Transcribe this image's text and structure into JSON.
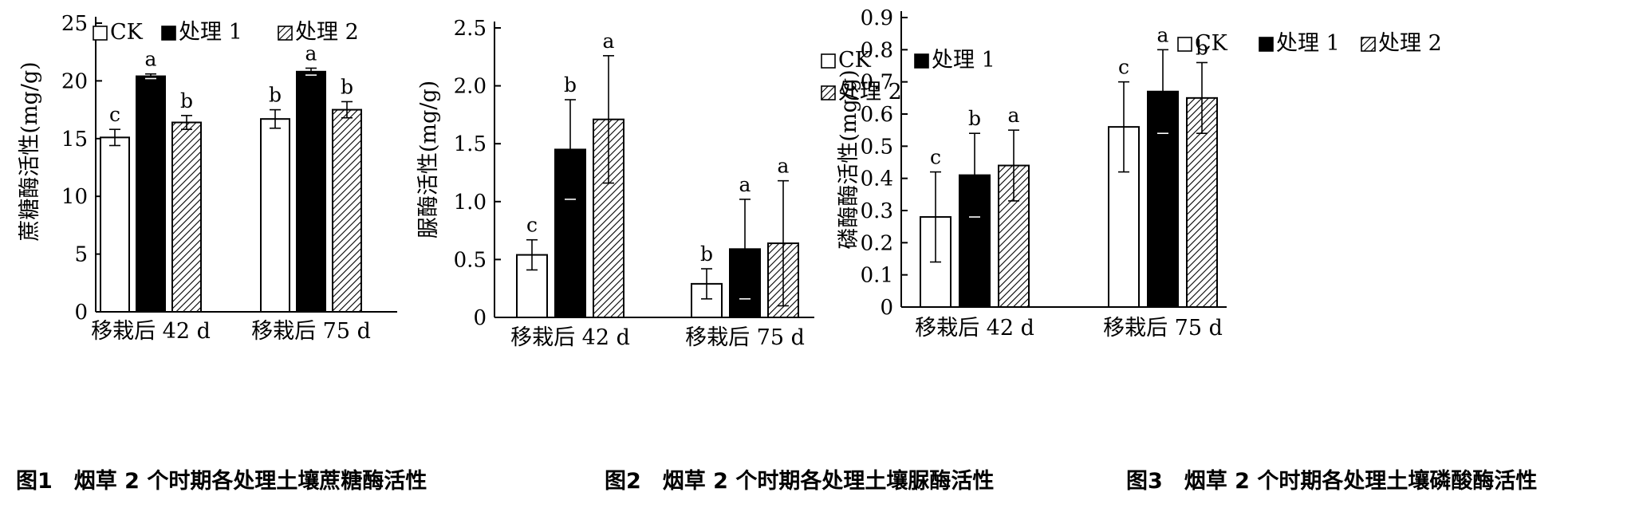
{
  "colors": {
    "ck": "#ffffff",
    "t1": "#000000",
    "t2_hatch": "#000000",
    "axis": "#000000"
  },
  "chart_data": [
    {
      "type": "bar",
      "caption": "图1　烟草 2 个时期各处理土壤蔗糖酶活性",
      "ylabel": "蔗糖酶活性(mg/g)",
      "xlabel": "",
      "categories": [
        "移栽后 42 d",
        "移栽后 75 d"
      ],
      "ylim": [
        0,
        25
      ],
      "yticks": [
        "0",
        "5",
        "10",
        "15",
        "20",
        "25"
      ],
      "legend": [
        "CK",
        "处理 1",
        "处理 2"
      ],
      "legend_position": "top-left",
      "series": [
        {
          "name": "CK",
          "values": [
            15.1,
            16.7
          ],
          "errors": [
            0.7,
            0.8
          ],
          "letters": [
            "c",
            "b"
          ]
        },
        {
          "name": "处理 1",
          "values": [
            20.4,
            20.8
          ],
          "errors": [
            0.2,
            0.3
          ],
          "letters": [
            "a",
            "a"
          ]
        },
        {
          "name": "处理 2",
          "values": [
            16.4,
            17.5
          ],
          "errors": [
            0.6,
            0.7
          ],
          "letters": [
            "b",
            "b"
          ]
        }
      ]
    },
    {
      "type": "bar",
      "caption": "图2　烟草 2 个时期各处理土壤脲酶活性",
      "ylabel": "脲酶活性(mg/g)",
      "xlabel": "",
      "categories": [
        "移栽后 42 d",
        "移栽后 75 d"
      ],
      "ylim": [
        0,
        2.5
      ],
      "yticks": [
        "0",
        "0.5",
        "1.0",
        "1.5",
        "2.0",
        "2.5"
      ],
      "legend": [
        "CK",
        "处理 1",
        "处理 2"
      ],
      "legend_position": "top-right",
      "series": [
        {
          "name": "CK",
          "values": [
            0.54,
            0.29
          ],
          "errors": [
            0.13,
            0.13
          ],
          "letters": [
            "c",
            "b"
          ]
        },
        {
          "name": "处理 1",
          "values": [
            1.45,
            0.59
          ],
          "errors": [
            0.43,
            0.43
          ],
          "letters": [
            "b",
            "a"
          ]
        },
        {
          "name": "处理 2",
          "values": [
            1.71,
            0.64
          ],
          "errors": [
            0.55,
            0.54
          ],
          "letters": [
            "a",
            "a"
          ]
        }
      ]
    },
    {
      "type": "bar",
      "caption": "图3　烟草 2 个时期各处理土壤磷酸酶活性",
      "ylabel": "磷酶酶活性(mg/g)",
      "xlabel": "",
      "categories": [
        "移栽后 42 d",
        "移栽后 75 d"
      ],
      "ylim": [
        0,
        0.9
      ],
      "yticks": [
        "0",
        "0.1",
        "0.2",
        "0.3",
        "0.4",
        "0.5",
        "0.6",
        "0.7",
        "0.8",
        "0.9"
      ],
      "legend": [
        "CK",
        "处理 1",
        "处理 2"
      ],
      "legend_position": "top-left",
      "series": [
        {
          "name": "CK",
          "values": [
            0.28,
            0.56
          ],
          "errors": [
            0.14,
            0.14
          ],
          "letters": [
            "c",
            "c"
          ]
        },
        {
          "name": "处理 1",
          "values": [
            0.41,
            0.67
          ],
          "errors": [
            0.13,
            0.13
          ],
          "letters": [
            "b",
            "a"
          ]
        },
        {
          "name": "处理 2",
          "values": [
            0.44,
            0.65
          ],
          "errors": [
            0.11,
            0.11
          ],
          "letters": [
            "a",
            "b"
          ]
        }
      ]
    }
  ]
}
